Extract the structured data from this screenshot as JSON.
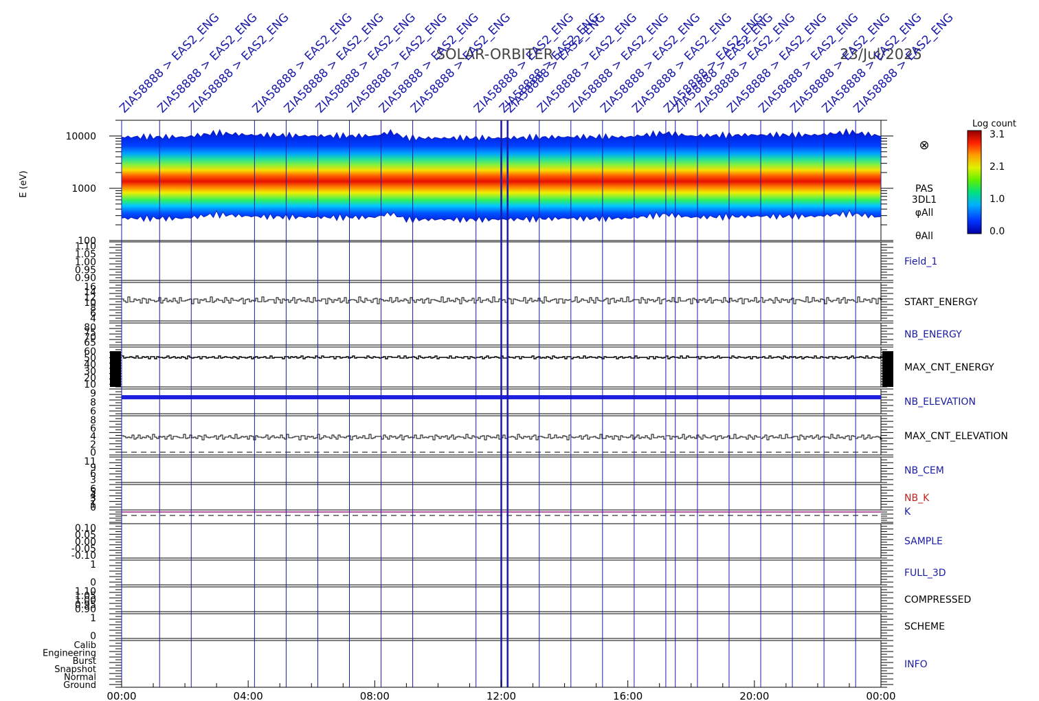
{
  "header": {
    "mission": "SOLAR-ORBITER",
    "date": "23/Jul/2025"
  },
  "colorbar": {
    "title": "Log count",
    "ticks": [
      "3.1",
      "2.1",
      "1.0",
      "0.0"
    ]
  },
  "spectrogram": {
    "ylabel": "E (eV)",
    "yticks": [
      "10000",
      "1000",
      "100"
    ],
    "side_labels": [
      "PAS",
      "3DL1",
      "φAll",
      "θAll"
    ],
    "symbol": "⊗"
  },
  "xaxis": {
    "ticks": [
      "00:00",
      "04:00",
      "08:00",
      "12:00",
      "16:00",
      "20:00",
      "00:00"
    ]
  },
  "event_labels": [
    "ZIA58888 > EAS2_ENG",
    "ZIA58888 > EAS2_ENG",
    "ZIA58888 > EAS2_ENG",
    "ZIA58888 > EAS2_ENG",
    "ZIA58888 > EAS2_ENG",
    "ZIA58888 > EAS2_ENG",
    "ZIA58888 > EAS2_ENG",
    "ZIA58888 > EAS2_ENG",
    "ZIA58888 > EAS2_ENG",
    "ZIA58888 > EAS2_ENG",
    "ZIA58888 > EAS2_ENG",
    "ZIA58888 > EAS2_ENG",
    "ZIA58888 > EAS2_ENG",
    "ZIA58888 > EAS2_ENG",
    "ZIA58888 > EAS2_ENG",
    "ZIA58888 > EAS2_ENG",
    "ZIA58888 > EAS2_ENG",
    "ZIA58888 > EAS2_ENG",
    "ZIA58888 > EAS2_ENG",
    "ZIA58888 > EAS2_ENG",
    "ZIA58888 > EAS2_ENG",
    "ZIA58888 > EAS2_ENG",
    "ZIA58888 > EAS2_ENG",
    "ZIA58888 > EAS2_ENG"
  ],
  "panels": [
    {
      "label": "Field_1",
      "label_color": "#1a1aa8",
      "yticks": [
        "1.10",
        "1.05",
        "1.00",
        "0.95",
        "0.90"
      ]
    },
    {
      "label": "START_ENERGY",
      "label_color": "#000000",
      "yticks": [
        "16",
        "14",
        "12",
        "10",
        "8",
        "6",
        "4"
      ]
    },
    {
      "label": "NB_ENERGY",
      "label_color": "#1a1aa8",
      "yticks": [
        "80",
        "75",
        "70",
        "65"
      ]
    },
    {
      "label": "MAX_CNT_ENERGY",
      "label_color": "#000000",
      "yticks": [
        "60",
        "50",
        "40",
        "30",
        "20",
        "10"
      ]
    },
    {
      "label": "NB_ELEVATION",
      "label_color": "#1a1aa8",
      "yticks": [
        "9",
        "8",
        "6"
      ]
    },
    {
      "label": "MAX_CNT_ELEVATION",
      "label_color": "#000000",
      "yticks": [
        "8",
        "6",
        "4",
        "2",
        "0"
      ]
    },
    {
      "label": "NB_CEM",
      "label_color": "#1a1aa8",
      "yticks": [
        "11",
        "9",
        "6",
        "3"
      ]
    },
    {
      "label": "NB_K",
      "label_color": "#c02020",
      "yticks": [
        "6",
        "5",
        "4",
        "3",
        "2",
        "1",
        "0"
      ]
    },
    {
      "label": "K",
      "label_color": "#1a1aa8",
      "yticks": []
    },
    {
      "label": "SAMPLE",
      "label_color": "#1a1aa8",
      "yticks": [
        "0.10",
        "0.05",
        "0.00",
        "-0.05",
        "-0.10"
      ]
    },
    {
      "label": "FULL_3D",
      "label_color": "#1a1aa8",
      "yticks": [
        "1",
        "0"
      ]
    },
    {
      "label": "COMPRESSED",
      "label_color": "#000000",
      "yticks": [
        "1.10",
        "1.05",
        "1.00",
        "0.95",
        "0.90"
      ]
    },
    {
      "label": "SCHEME",
      "label_color": "#000000",
      "yticks": [
        "1",
        "0"
      ]
    },
    {
      "label": "INFO",
      "label_color": "#1a1aa8",
      "yticks": [
        "Calib",
        "Engineering",
        "Burst",
        "Snapshot",
        "Normal",
        "Ground"
      ]
    }
  ],
  "chart_data": {
    "type": "heatmap",
    "title": "SOLAR-ORBITER 23/Jul/2025",
    "xlabel": "",
    "ylabel": "E (eV)",
    "x_range": [
      "00:00",
      "00:00"
    ],
    "x_ticks": [
      "00:00",
      "04:00",
      "08:00",
      "12:00",
      "16:00",
      "20:00",
      "00:00"
    ],
    "y_scale": "log",
    "ylim": [
      100,
      20000
    ],
    "color_scale": {
      "label": "Log count",
      "min": 0.0,
      "max": 3.1
    },
    "peak_energy_eV": {
      "hours": [
        0,
        2,
        3,
        4,
        6,
        8,
        8.5,
        9,
        12,
        14,
        16,
        17.2,
        18,
        20,
        22,
        23,
        24
      ],
      "values": [
        1050,
        1050,
        1250,
        1150,
        1100,
        1100,
        1300,
        1000,
        1000,
        1050,
        1050,
        1250,
        1100,
        1150,
        1150,
        1300,
        1100
      ]
    },
    "band_low_eV": 280,
    "band_high_eV": 10000,
    "line_series": [
      {
        "panel": "START_ENERGY",
        "baseline": 10
      },
      {
        "panel": "MAX_CNT_ENERGY",
        "baseline": 52
      },
      {
        "panel": "NB_ELEVATION",
        "baseline": 9
      },
      {
        "panel": "MAX_CNT_ELEVATION",
        "baseline": 4
      },
      {
        "panel": "NB_K",
        "baseline": 1
      }
    ]
  }
}
